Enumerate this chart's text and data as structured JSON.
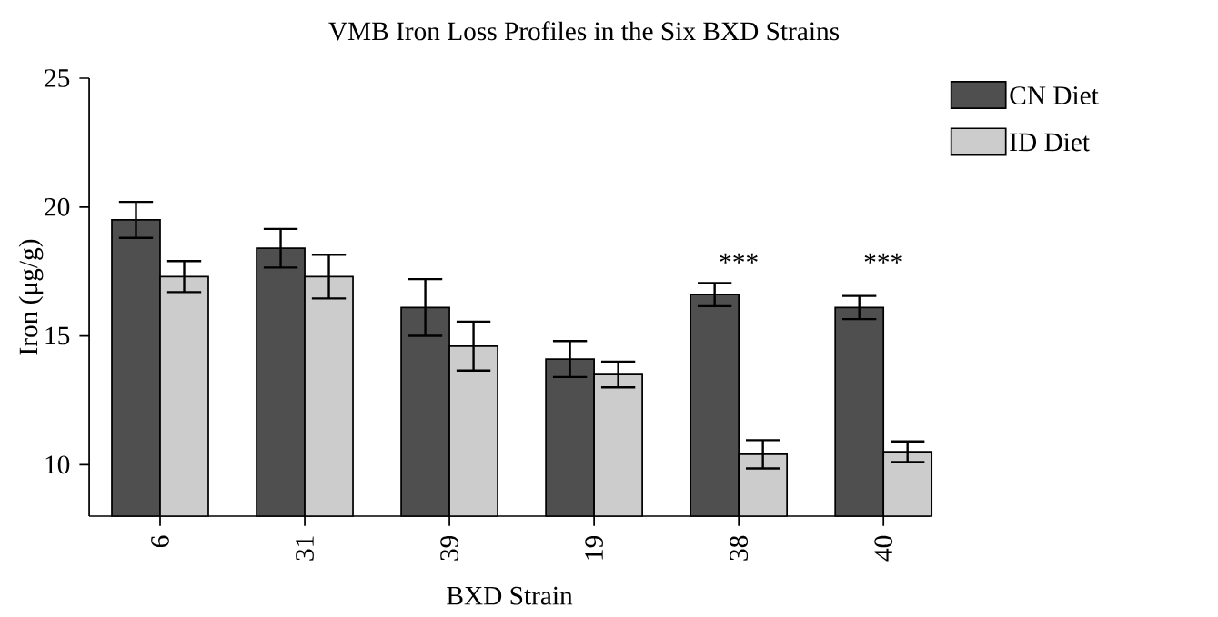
{
  "chart_data": {
    "type": "bar",
    "title": "VMB Iron Loss Profiles in the Six BXD Strains",
    "xlabel": "BXD Strain",
    "ylabel": "Iron (μg/g)",
    "categories": [
      "6",
      "31",
      "39",
      "19",
      "38",
      "40"
    ],
    "series": [
      {
        "name": "CN Diet",
        "color": "#4f4f4f",
        "values": [
          19.5,
          18.4,
          16.1,
          14.1,
          16.6,
          16.1
        ],
        "errors": [
          0.7,
          0.75,
          1.1,
          0.7,
          0.45,
          0.45
        ]
      },
      {
        "name": "ID Diet",
        "color": "#cccccc",
        "values": [
          17.3,
          17.3,
          14.6,
          13.5,
          10.4,
          10.5
        ],
        "errors": [
          0.6,
          0.85,
          0.95,
          0.5,
          0.55,
          0.4
        ]
      }
    ],
    "ylim": [
      8,
      25
    ],
    "yticks": [
      10,
      15,
      20,
      25
    ],
    "grid": false,
    "legend": "top right",
    "annotations": [
      "***",
      "***"
    ]
  }
}
